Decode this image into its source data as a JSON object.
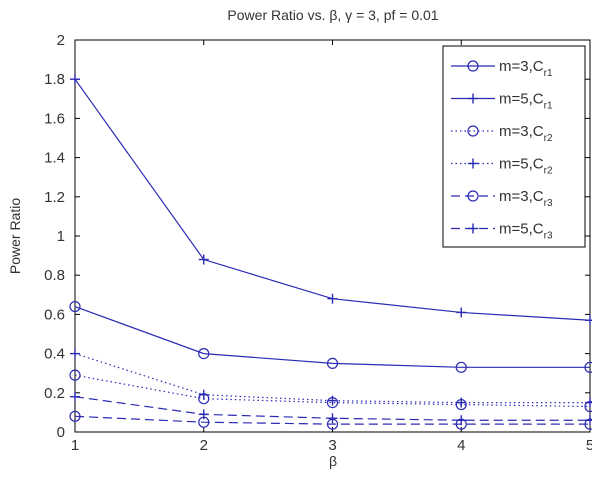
{
  "chart_data": {
    "type": "line",
    "title": "Power Ratio vs. β, γ = 3, pf = 0.01",
    "xlabel": "β",
    "ylabel": "Power Ratio",
    "xlim": [
      1,
      5
    ],
    "ylim": [
      0,
      2
    ],
    "x_ticks": [
      "1",
      "2",
      "3",
      "4",
      "5"
    ],
    "y_ticks": [
      "0",
      "0.2",
      "0.4",
      "0.6",
      "0.8",
      "1",
      "1.2",
      "1.4",
      "1.6",
      "1.8",
      "2"
    ],
    "x": [
      1,
      2,
      3,
      4,
      5
    ],
    "legend_position": "top-right",
    "grid": false,
    "line_color": "#2b2bb5",
    "series": [
      {
        "name": "m=3,C",
        "sub": "r1",
        "values": [
          0.64,
          0.4,
          0.35,
          0.33,
          0.33
        ],
        "linestyle": "solid",
        "marker": "circle"
      },
      {
        "name": "m=5,C",
        "sub": "r1",
        "values": [
          1.8,
          0.88,
          0.68,
          0.61,
          0.57
        ],
        "linestyle": "solid",
        "marker": "plus"
      },
      {
        "name": "m=3,C",
        "sub": "r2",
        "values": [
          0.29,
          0.17,
          0.15,
          0.14,
          0.13
        ],
        "linestyle": "dotted",
        "marker": "circle"
      },
      {
        "name": "m=5,C",
        "sub": "r2",
        "values": [
          0.4,
          0.19,
          0.16,
          0.15,
          0.15
        ],
        "linestyle": "dotted",
        "marker": "plus"
      },
      {
        "name": "m=3,C",
        "sub": "r3",
        "values": [
          0.08,
          0.05,
          0.04,
          0.04,
          0.04
        ],
        "linestyle": "dashed",
        "marker": "circle"
      },
      {
        "name": "m=5,C",
        "sub": "r3",
        "values": [
          0.18,
          0.09,
          0.07,
          0.06,
          0.06
        ],
        "linestyle": "dashed",
        "marker": "plus"
      }
    ]
  }
}
